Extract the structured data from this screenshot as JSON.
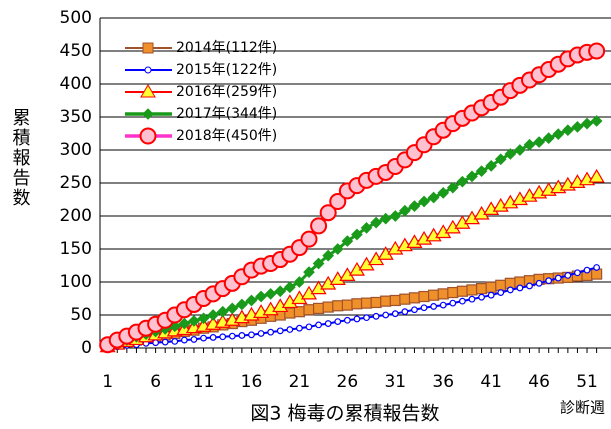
{
  "chart_data": {
    "type": "line",
    "title": "図3 梅毒の累積報告数",
    "y_label": "累積報告数",
    "x_label": "診断週",
    "x": [
      1,
      2,
      3,
      4,
      5,
      6,
      7,
      8,
      9,
      10,
      11,
      12,
      13,
      14,
      15,
      16,
      17,
      18,
      19,
      20,
      21,
      22,
      23,
      24,
      25,
      26,
      27,
      28,
      29,
      30,
      31,
      32,
      33,
      34,
      35,
      36,
      37,
      38,
      39,
      40,
      41,
      42,
      43,
      44,
      45,
      46,
      47,
      48,
      49,
      50,
      51,
      52
    ],
    "xlim": [
      0.2,
      53.5
    ],
    "xticks": [
      1,
      6,
      11,
      16,
      21,
      26,
      31,
      36,
      41,
      46,
      51
    ],
    "ylim": [
      0,
      500
    ],
    "yticks": [
      0,
      50,
      100,
      150,
      200,
      250,
      300,
      350,
      400,
      450,
      500
    ],
    "grid": true,
    "legend": "upper left",
    "series": [
      {
        "name": "2014年(112件)",
        "color": "#a0522d",
        "marker": "square",
        "marker_fill": "#f0902a",
        "values": [
          3,
          6,
          9,
          12,
          15,
          17,
          20,
          22,
          25,
          27,
          30,
          32,
          35,
          37,
          40,
          42,
          45,
          48,
          50,
          53,
          55,
          58,
          60,
          62,
          64,
          65,
          67,
          68,
          69,
          71,
          72,
          74,
          76,
          78,
          80,
          82,
          84,
          86,
          88,
          90,
          92,
          95,
          98,
          100,
          102,
          104,
          105,
          106,
          107,
          109,
          110,
          112
        ]
      },
      {
        "name": "2015年(122件)",
        "color": "#0000ff",
        "marker": "circle-small",
        "marker_fill": "#ffffff",
        "values": [
          1,
          2,
          4,
          5,
          7,
          8,
          9,
          10,
          12,
          13,
          15,
          16,
          17,
          18,
          19,
          20,
          22,
          24,
          26,
          28,
          30,
          32,
          35,
          37,
          40,
          42,
          44,
          46,
          48,
          50,
          52,
          55,
          58,
          61,
          63,
          65,
          68,
          71,
          74,
          77,
          80,
          84,
          88,
          91,
          94,
          98,
          102,
          106,
          110,
          114,
          118,
          122
        ]
      },
      {
        "name": "2016年(259件)",
        "color": "#ff0000",
        "marker": "triangle",
        "marker_fill": "#ffff33",
        "values": [
          2,
          6,
          10,
          13,
          17,
          20,
          23,
          26,
          28,
          31,
          33,
          36,
          39,
          42,
          46,
          50,
          54,
          58,
          63,
          69,
          75,
          82,
          90,
          97,
          104,
          110,
          118,
          126,
          134,
          142,
          150,
          155,
          160,
          165,
          170,
          175,
          182,
          189,
          196,
          203,
          210,
          215,
          220,
          225,
          230,
          235,
          239,
          243,
          247,
          251,
          255,
          259
        ]
      },
      {
        "name": "2017年(344件)",
        "color": "#1a9a1a",
        "marker": "diamond",
        "marker_fill": "#1a9a1a",
        "values": [
          2,
          7,
          12,
          17,
          21,
          25,
          29,
          33,
          37,
          41,
          45,
          50,
          55,
          60,
          66,
          72,
          78,
          82,
          86,
          92,
          100,
          115,
          128,
          140,
          150,
          162,
          172,
          182,
          190,
          196,
          200,
          208,
          215,
          222,
          228,
          235,
          243,
          252,
          260,
          268,
          276,
          286,
          294,
          300,
          308,
          312,
          318,
          324,
          330,
          335,
          340,
          344
        ]
      },
      {
        "name": "2018年(450件)",
        "color": "#ff33cc",
        "marker": "circle",
        "marker_fill": "#ffc0d0",
        "marker_stroke": "#ff0000",
        "values": [
          5,
          12,
          18,
          24,
          30,
          36,
          42,
          50,
          58,
          66,
          75,
          82,
          90,
          98,
          108,
          118,
          124,
          128,
          134,
          142,
          152,
          165,
          185,
          205,
          222,
          238,
          246,
          254,
          260,
          266,
          275,
          285,
          296,
          308,
          320,
          330,
          340,
          348,
          356,
          364,
          372,
          380,
          390,
          398,
          406,
          414,
          422,
          430,
          438,
          444,
          448,
          450
        ]
      }
    ]
  }
}
